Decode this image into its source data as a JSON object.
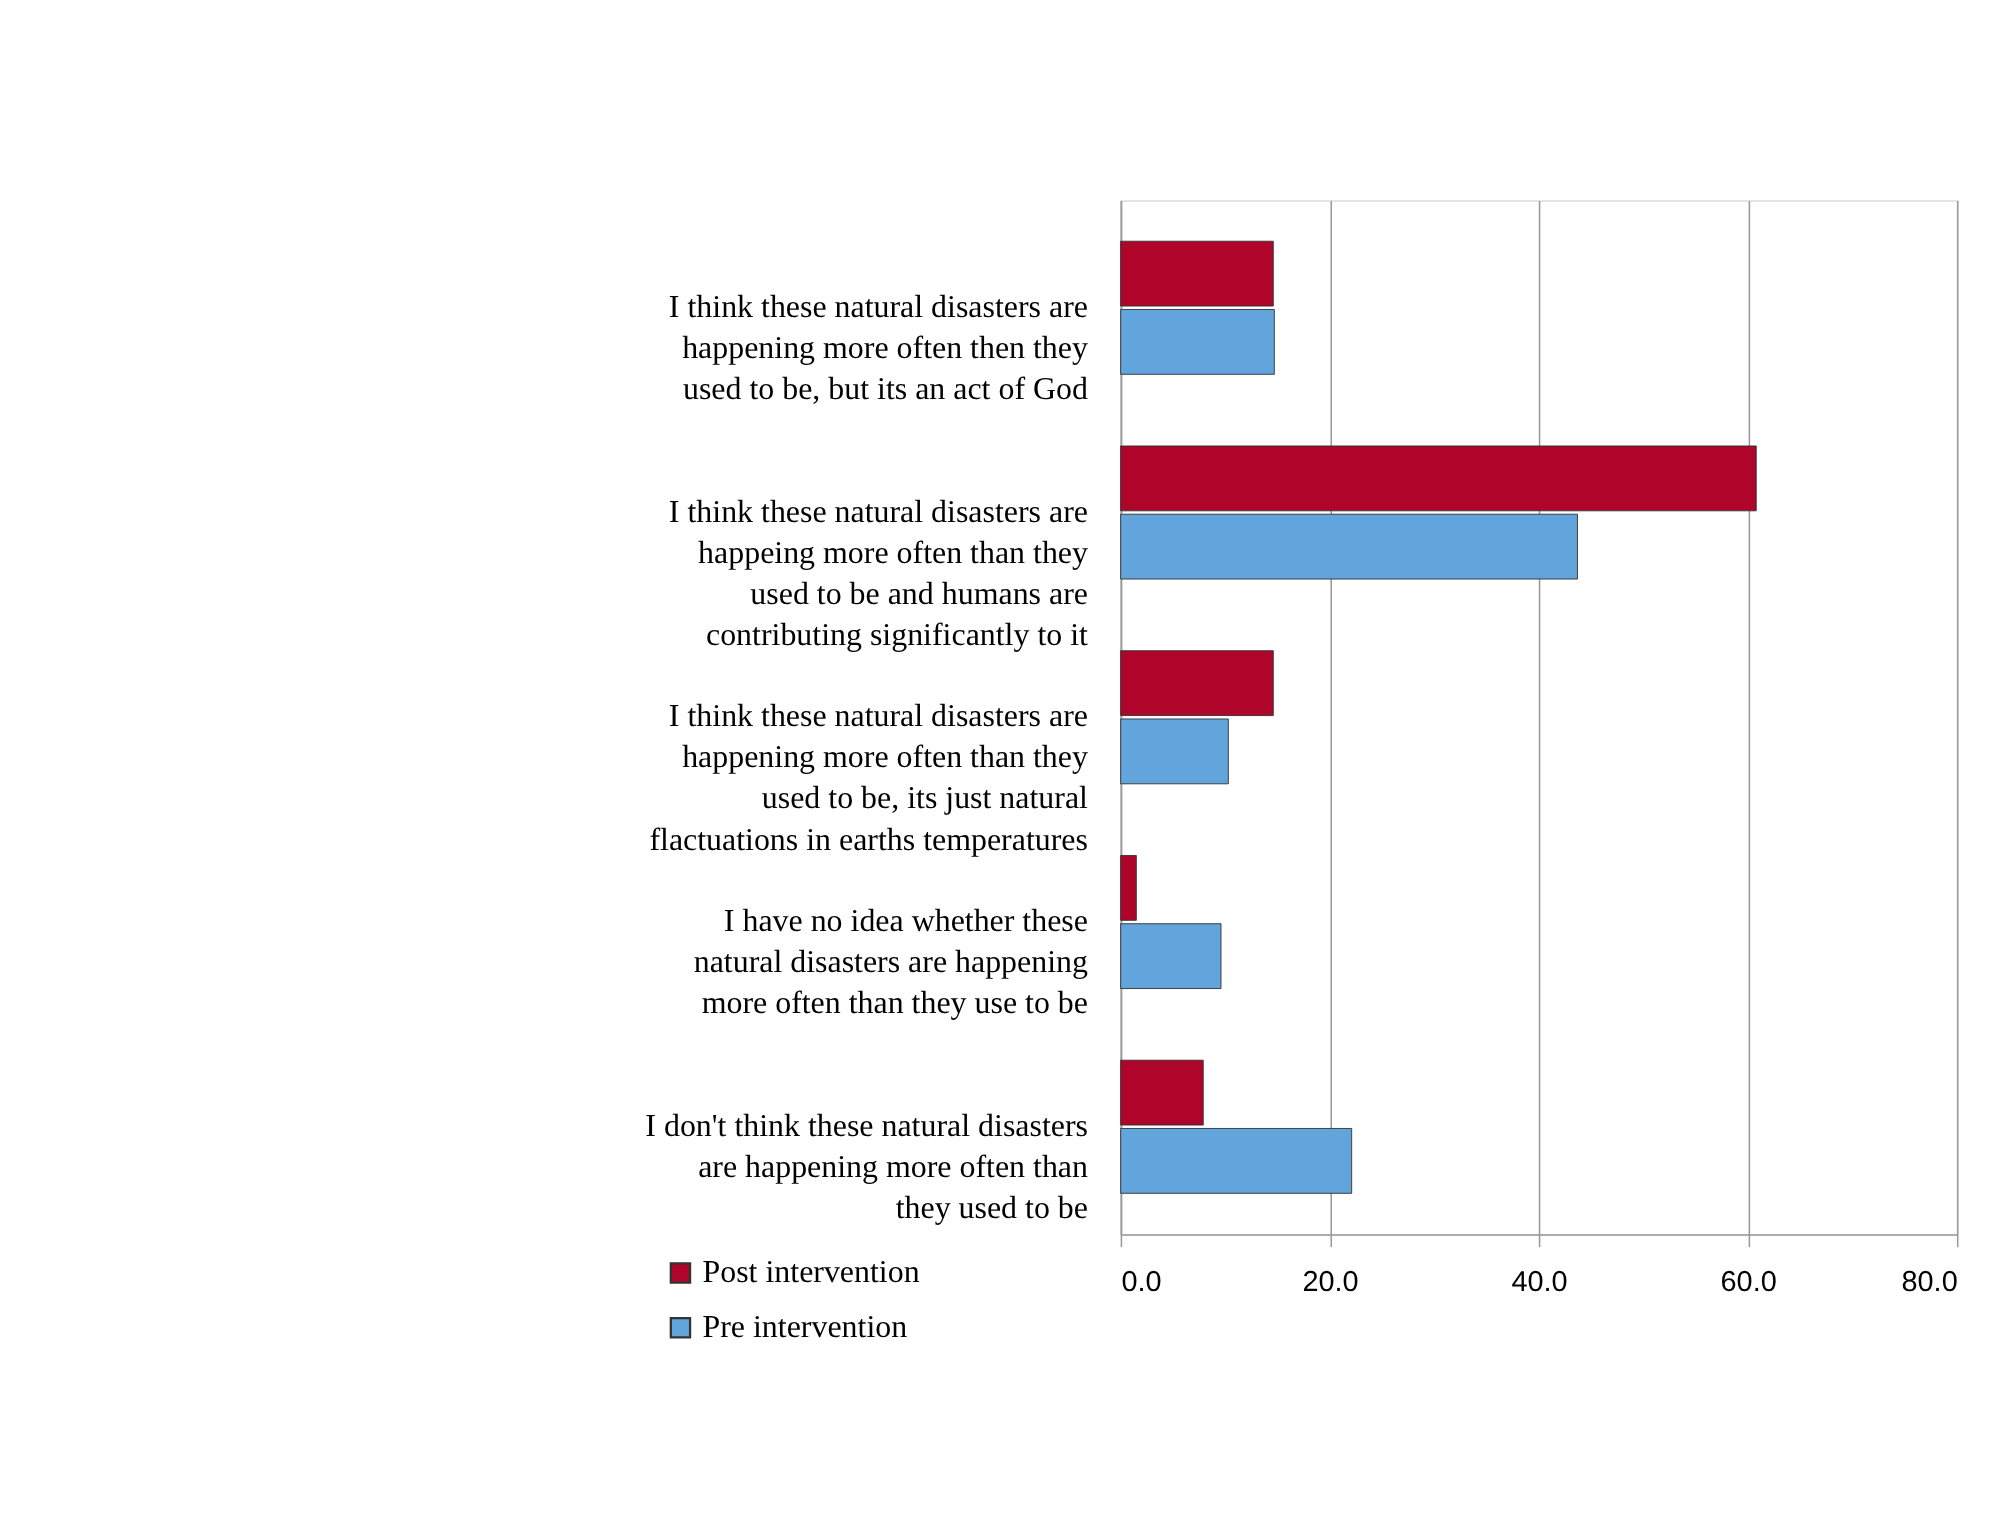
{
  "chart_data": {
    "type": "bar",
    "orientation": "horizontal",
    "categories": [
      "I think these natural disasters are\nhappening more often then they\nused to be, but its an act of God",
      "I think these natural disasters are\nhappeing more often than they\nused to be and humans are\ncontributing significantly to it",
      "I think these natural disasters are\nhappening more often than they\nused to be, its just natural\nflactuations in earths temperatures",
      "I have no idea whether these\nnatural disasters are happening\nmore often than they use to be",
      "I don't think these natural disasters\nare happening more often than\nthey used to be"
    ],
    "series": [
      {
        "name": "Post intervention",
        "color": "#b0052a",
        "values": [
          14.6,
          60.8,
          14.6,
          1.5,
          7.9
        ]
      },
      {
        "name": "Pre intervention",
        "color": "#62a4dc",
        "values": [
          14.7,
          43.7,
          10.3,
          9.6,
          22.1
        ]
      }
    ],
    "xlim": [
      0,
      80
    ],
    "xticks": [
      {
        "value": 0,
        "label": "0.0"
      },
      {
        "value": 20,
        "label": "20.0"
      },
      {
        "value": 40,
        "label": "40.0"
      },
      {
        "value": 60,
        "label": "60.0"
      },
      {
        "value": 80,
        "label": "80.0"
      }
    ],
    "grid": "x",
    "legend": "bottom left"
  }
}
